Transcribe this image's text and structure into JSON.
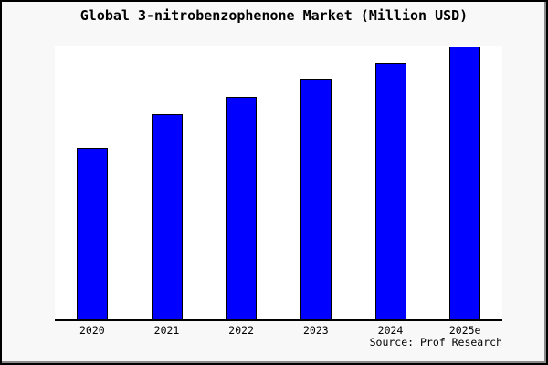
{
  "header": {
    "title": "Global 3-nitrobenzophenone Market (Million USD)"
  },
  "chart_data": {
    "type": "bar",
    "title": "Global 3-nitrobenzophenone Market (Million USD)",
    "categories": [
      "2020",
      "2021",
      "2022",
      "2023",
      "2024",
      "2025e"
    ],
    "values": [
      62.9,
      75.3,
      81.6,
      88.0,
      94.0,
      100.0
    ],
    "units_note": "relative index estimated from bar heights; chart displays no y-axis scale, 2025e bar = 100",
    "xlabel": "",
    "ylabel": "",
    "ylim": [
      0,
      100.3
    ],
    "grid": false,
    "legend": false,
    "bar_color": "#0000ff",
    "bar_edge_color": "#000000",
    "plot_bg": "#ffffff",
    "outer_bg": "#f8f8f8"
  },
  "footer": {
    "source": "Source: Prof Research"
  }
}
